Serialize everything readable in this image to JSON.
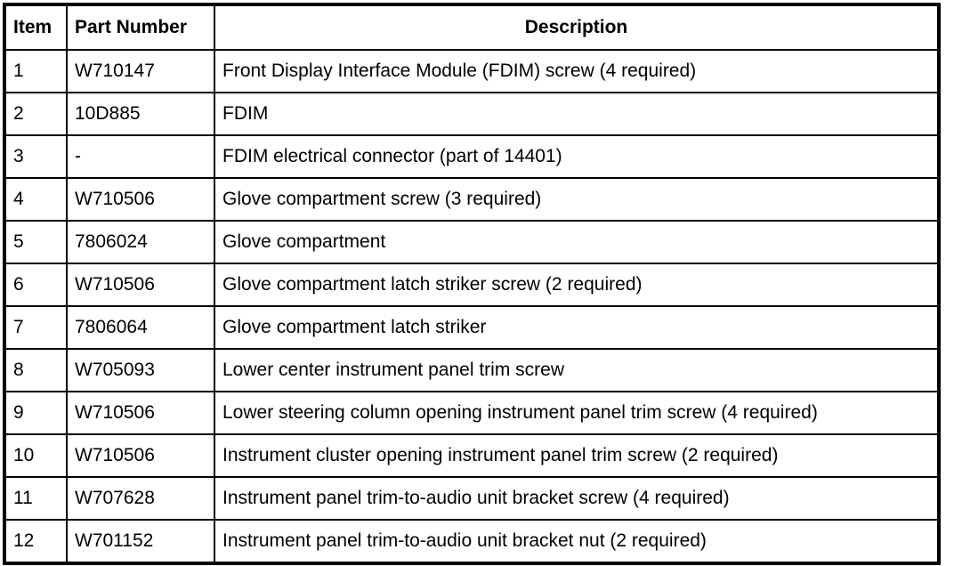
{
  "headers": {
    "item": "Item",
    "part_number": "Part Number",
    "description": "Description"
  },
  "rows": [
    {
      "item": "1",
      "part_number": "W710147",
      "description": "Front Display Interface Module (FDIM) screw (4 required)"
    },
    {
      "item": "2",
      "part_number": "10D885",
      "description": "FDIM"
    },
    {
      "item": "3",
      "part_number": "-",
      "description": "FDIM electrical connector (part of 14401)"
    },
    {
      "item": "4",
      "part_number": "W710506",
      "description": "Glove compartment screw (3 required)"
    },
    {
      "item": "5",
      "part_number": "7806024",
      "description": "Glove compartment"
    },
    {
      "item": "6",
      "part_number": "W710506",
      "description": "Glove compartment latch striker screw (2 required)"
    },
    {
      "item": "7",
      "part_number": "7806064",
      "description": "Glove compartment latch striker"
    },
    {
      "item": "8",
      "part_number": "W705093",
      "description": "Lower center instrument panel trim screw"
    },
    {
      "item": "9",
      "part_number": "W710506",
      "description": "Lower steering column opening instrument panel trim screw (4 required)"
    },
    {
      "item": "10",
      "part_number": "W710506",
      "description": "Instrument cluster opening instrument panel trim screw (2 required)"
    },
    {
      "item": "11",
      "part_number": "W707628",
      "description": "Instrument panel trim-to-audio unit bracket screw (4 required)"
    },
    {
      "item": "12",
      "part_number": "W701152",
      "description": "Instrument panel trim-to-audio unit bracket nut (2 required)"
    }
  ]
}
